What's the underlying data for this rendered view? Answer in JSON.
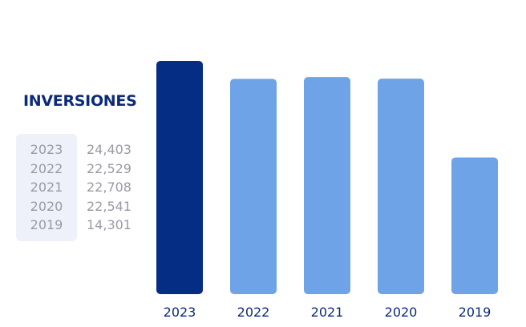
{
  "chart_data": {
    "type": "bar",
    "title": "INVERSIONES",
    "categories": [
      "2023",
      "2022",
      "2021",
      "2020",
      "2019"
    ],
    "values": [
      24403,
      22529,
      22708,
      22541,
      14301
    ],
    "value_labels": [
      "24,403",
      "22,529",
      "22,708",
      "22,541",
      "14,301"
    ],
    "ylim": [
      0,
      27000
    ],
    "grid": false,
    "colors": {
      "highlight": "#052d84",
      "default": "#6fa3e7",
      "title": "#0b2a7a",
      "table_text": "#9a9aa6",
      "table_bg": "#eef1fa"
    },
    "highlight_category": "2023"
  }
}
